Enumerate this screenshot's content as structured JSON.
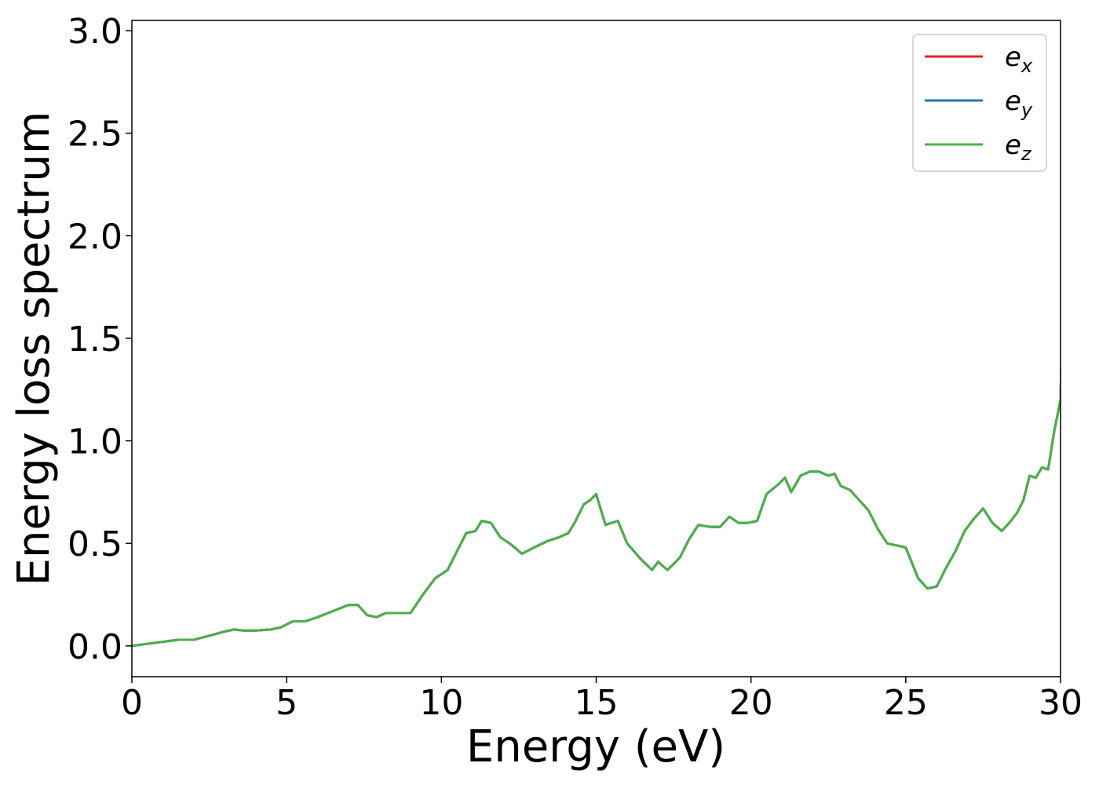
{
  "chart_data": {
    "type": "line",
    "title": "",
    "xlabel": "Energy (eV)",
    "ylabel": "Energy loss spectrum",
    "xlim": [
      0,
      30
    ],
    "ylim": [
      -0.15,
      3.05
    ],
    "xticks": [
      0,
      5,
      10,
      15,
      20,
      25,
      30
    ],
    "xtick_labels": [
      "0",
      "5",
      "10",
      "15",
      "20",
      "25",
      "30"
    ],
    "yticks": [
      0.0,
      0.5,
      1.0,
      1.5,
      2.0,
      2.5,
      3.0
    ],
    "ytick_labels": [
      "0.0",
      "0.5",
      "1.0",
      "1.5",
      "2.0",
      "2.5",
      "3.0"
    ],
    "grid": false,
    "legend_position": "top-right",
    "x": [
      0,
      0.5,
      1.0,
      1.5,
      2.0,
      2.5,
      3.0,
      3.3,
      3.6,
      4.0,
      4.5,
      4.8,
      5.2,
      5.6,
      6.0,
      6.5,
      7.0,
      7.3,
      7.6,
      7.9,
      8.2,
      8.6,
      9.0,
      9.4,
      9.8,
      10.2,
      10.5,
      10.8,
      11.1,
      11.3,
      11.6,
      11.9,
      12.2,
      12.6,
      13.0,
      13.4,
      13.8,
      14.1,
      14.3,
      14.6,
      14.8,
      15.0,
      15.3,
      15.7,
      16.0,
      16.4,
      16.8,
      17.0,
      17.3,
      17.7,
      18.0,
      18.3,
      18.7,
      19.0,
      19.3,
      19.6,
      19.9,
      20.2,
      20.5,
      20.9,
      21.1,
      21.3,
      21.6,
      21.9,
      22.2,
      22.5,
      22.7,
      22.9,
      23.2,
      23.5,
      23.8,
      24.1,
      24.4,
      24.7,
      25.0,
      25.4,
      25.7,
      26.0,
      26.3,
      26.6,
      26.9,
      27.2,
      27.5,
      27.8,
      28.1,
      28.4,
      28.6,
      28.8,
      29.0,
      29.2,
      29.4,
      29.6,
      29.8,
      30.0
    ],
    "series": [
      {
        "name": "e_x",
        "color": "#d62728",
        "values": [
          0.0,
          0.01,
          0.02,
          0.03,
          0.03,
          0.05,
          0.07,
          0.08,
          0.075,
          0.075,
          0.08,
          0.09,
          0.12,
          0.12,
          0.14,
          0.17,
          0.2,
          0.2,
          0.15,
          0.14,
          0.16,
          0.16,
          0.16,
          0.25,
          0.33,
          0.37,
          0.46,
          0.55,
          0.56,
          0.61,
          0.6,
          0.53,
          0.5,
          0.45,
          0.48,
          0.51,
          0.53,
          0.55,
          0.6,
          0.69,
          0.71,
          0.74,
          0.59,
          0.61,
          0.5,
          0.43,
          0.37,
          0.41,
          0.37,
          0.43,
          0.52,
          0.59,
          0.58,
          0.58,
          0.63,
          0.6,
          0.6,
          0.61,
          0.74,
          0.79,
          0.82,
          0.75,
          0.83,
          0.85,
          0.85,
          0.83,
          0.84,
          0.78,
          0.76,
          0.71,
          0.66,
          0.57,
          0.5,
          0.49,
          0.48,
          0.33,
          0.28,
          0.29,
          0.38,
          0.46,
          0.56,
          0.62,
          0.67,
          0.6,
          0.56,
          0.61,
          0.65,
          0.71,
          0.83,
          0.82,
          0.87,
          0.86,
          1.05,
          1.2
        ]
      },
      {
        "name": "e_y",
        "color": "#1f77b4",
        "values": [
          0.0,
          0.01,
          0.02,
          0.03,
          0.03,
          0.05,
          0.07,
          0.08,
          0.075,
          0.075,
          0.08,
          0.09,
          0.12,
          0.12,
          0.14,
          0.17,
          0.2,
          0.2,
          0.15,
          0.14,
          0.16,
          0.16,
          0.16,
          0.25,
          0.33,
          0.37,
          0.46,
          0.55,
          0.56,
          0.61,
          0.6,
          0.53,
          0.5,
          0.45,
          0.48,
          0.51,
          0.53,
          0.55,
          0.6,
          0.69,
          0.71,
          0.74,
          0.59,
          0.61,
          0.5,
          0.43,
          0.37,
          0.41,
          0.37,
          0.43,
          0.52,
          0.59,
          0.58,
          0.58,
          0.63,
          0.6,
          0.6,
          0.61,
          0.74,
          0.79,
          0.82,
          0.75,
          0.83,
          0.85,
          0.85,
          0.83,
          0.84,
          0.78,
          0.76,
          0.71,
          0.66,
          0.57,
          0.5,
          0.49,
          0.48,
          0.33,
          0.28,
          0.29,
          0.38,
          0.46,
          0.56,
          0.62,
          0.67,
          0.6,
          0.56,
          0.61,
          0.65,
          0.71,
          0.83,
          0.82,
          0.87,
          0.86,
          1.05,
          1.2
        ]
      },
      {
        "name": "e_z",
        "color": "#4daf4a",
        "values": [
          0.0,
          0.01,
          0.02,
          0.03,
          0.03,
          0.05,
          0.07,
          0.08,
          0.075,
          0.075,
          0.08,
          0.09,
          0.12,
          0.12,
          0.14,
          0.17,
          0.2,
          0.2,
          0.15,
          0.14,
          0.16,
          0.16,
          0.16,
          0.25,
          0.33,
          0.37,
          0.46,
          0.55,
          0.56,
          0.61,
          0.6,
          0.53,
          0.5,
          0.45,
          0.48,
          0.51,
          0.53,
          0.55,
          0.6,
          0.69,
          0.71,
          0.74,
          0.59,
          0.61,
          0.5,
          0.43,
          0.37,
          0.41,
          0.37,
          0.43,
          0.52,
          0.59,
          0.58,
          0.58,
          0.63,
          0.6,
          0.6,
          0.61,
          0.74,
          0.79,
          0.82,
          0.75,
          0.83,
          0.85,
          0.85,
          0.83,
          0.84,
          0.78,
          0.76,
          0.71,
          0.66,
          0.57,
          0.5,
          0.49,
          0.48,
          0.33,
          0.28,
          0.29,
          0.38,
          0.46,
          0.56,
          0.62,
          0.67,
          0.6,
          0.56,
          0.61,
          0.65,
          0.71,
          0.83,
          0.82,
          0.87,
          0.86,
          1.05,
          1.2
        ]
      }
    ],
    "legend": [
      {
        "base": "e",
        "sub": "x",
        "color": "#d62728"
      },
      {
        "base": "e",
        "sub": "y",
        "color": "#1f77b4"
      },
      {
        "base": "e",
        "sub": "z",
        "color": "#4daf4a"
      }
    ]
  }
}
